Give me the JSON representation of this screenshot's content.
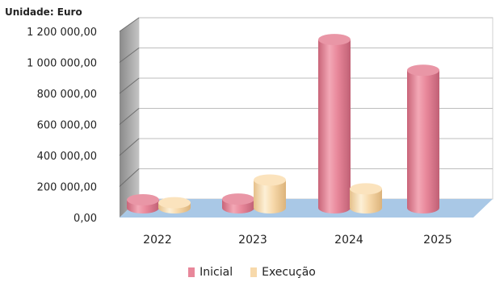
{
  "unit_label": "Unidade: Euro",
  "chart_data": {
    "type": "bar",
    "categories": [
      "2022",
      "2023",
      "2024",
      "2025"
    ],
    "series": [
      {
        "name": "Inicial",
        "values": [
          55000,
          60000,
          1150000,
          940000
        ],
        "color": "#e8879a"
      },
      {
        "name": "Execução",
        "values": [
          35000,
          190000,
          130000,
          null
        ],
        "color": "#f7d9ab"
      }
    ],
    "yticks": [
      "0,00",
      "200 000,00",
      "400 000,00",
      "600 000,00",
      "800 000,00",
      "1 000 000,00",
      "1 200 000,00"
    ],
    "ylim": [
      0,
      1200000
    ],
    "legend": [
      "Inicial",
      "Execução"
    ],
    "legend_position": "bottom",
    "grid": true,
    "style": "3d-cylinder"
  }
}
